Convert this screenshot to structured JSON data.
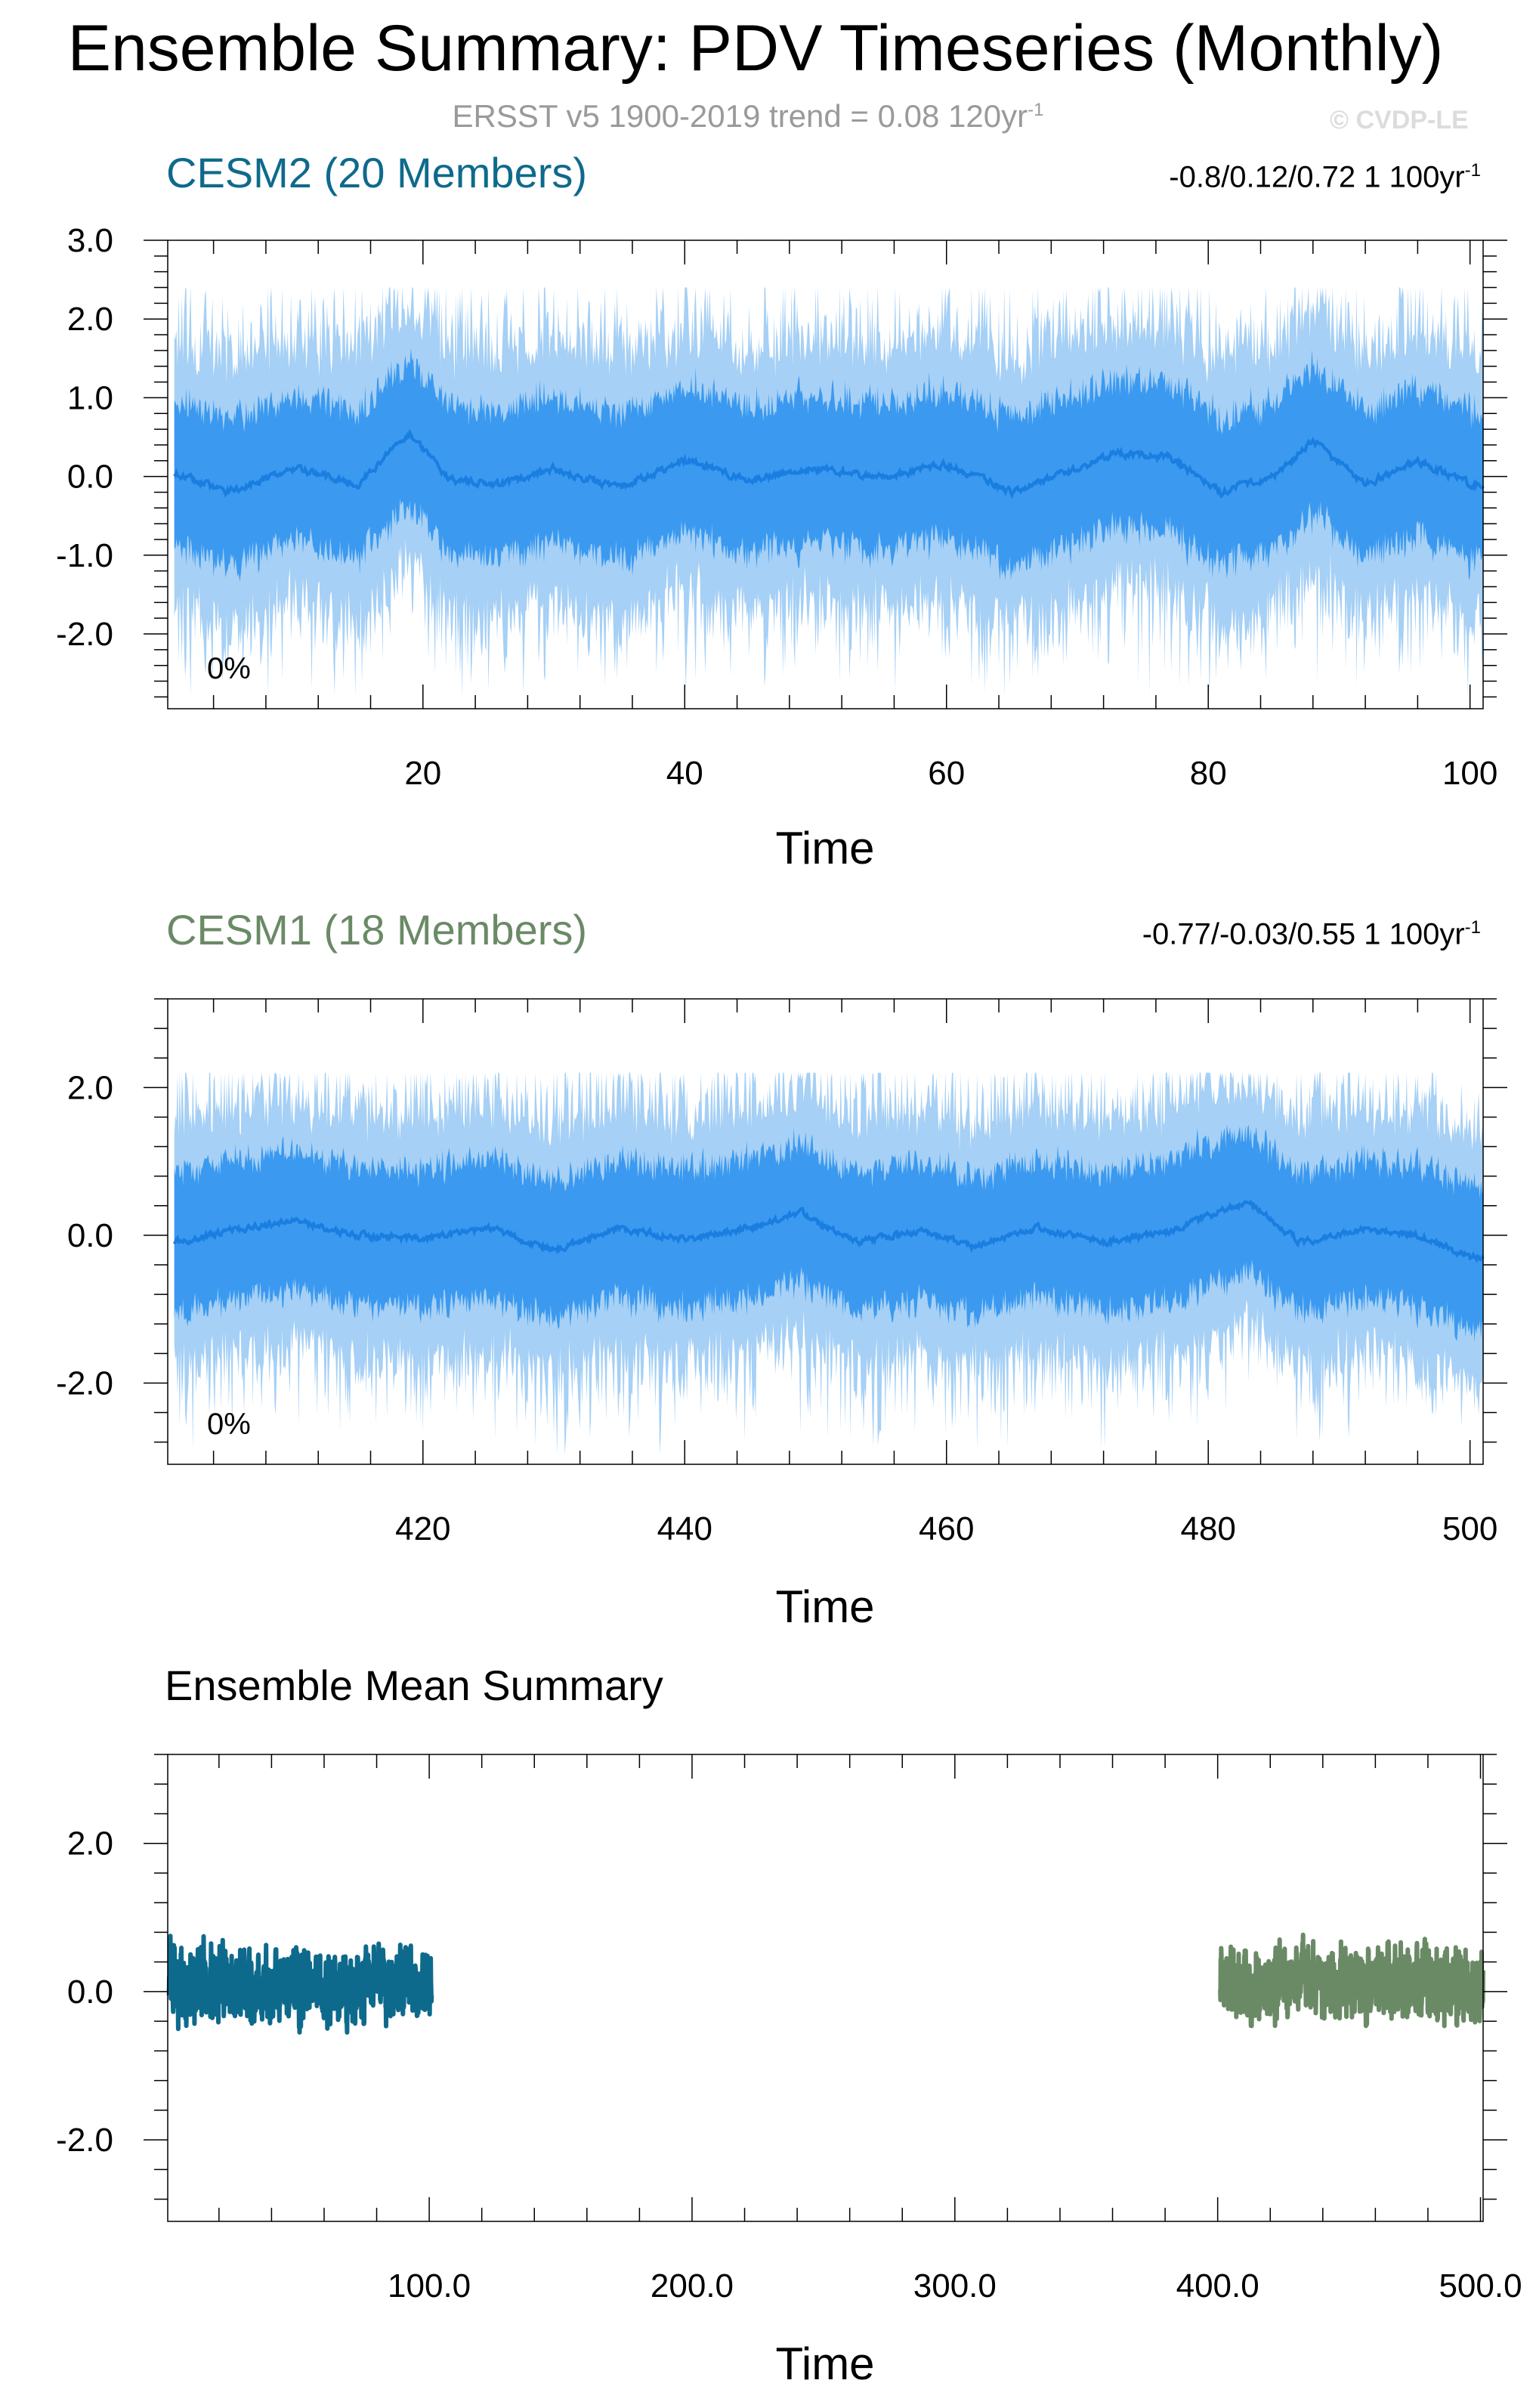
{
  "title": "Ensemble Summary: PDV Timeseries (Monthly)",
  "subtitle": "ERSST v5 1900-2019 trend = 0.08 120yr",
  "subtitle_sup": "-1",
  "credit": "© CVDP-LE",
  "colors": {
    "band_outer": "#a6d0f5",
    "band_inner": "#3b9af0",
    "mean_line": "#1a7ee0",
    "cesm2": "#0e6a8c",
    "cesm1": "#6a8a66",
    "grid": "#000000"
  },
  "chart_data": [
    {
      "type": "area",
      "title": "CESM2 (20 Members)",
      "stats": "-0.8/0.12/0.72 1 100yr",
      "stats_sup": "-1",
      "annotation": "0%",
      "xlabel": "Time",
      "ylabel": "",
      "xlim": [
        0.5,
        101
      ],
      "ylim": [
        -2.95,
        3.0
      ],
      "xticks": [
        20,
        40,
        60,
        80,
        100
      ],
      "xtick_labels": [
        "20",
        "40",
        "60",
        "80",
        "100"
      ],
      "yticks": [
        -2,
        -1,
        0,
        1,
        2,
        3
      ],
      "ytick_labels": [
        "-2.0",
        "-1.0",
        "0.0",
        "1.0",
        "2.0",
        "3.0"
      ],
      "series": [
        {
          "role": "outer_band",
          "x_range": [
            1,
            101
          ],
          "description_values": {
            "lower_min": -2.8,
            "upper_max": 2.4
          }
        },
        {
          "role": "inner_band",
          "x_range": [
            1,
            101
          ],
          "description_values": {
            "lower_min": -1.6,
            "upper_max": 1.7
          }
        },
        {
          "role": "ensemble_mean",
          "x_range": [
            1,
            101
          ],
          "sample_points": [
            [
              1,
              0.05
            ],
            [
              5,
              -0.2
            ],
            [
              10,
              0.1
            ],
            [
              15,
              -0.1
            ],
            [
              19,
              0.55
            ],
            [
              22,
              -0.05
            ],
            [
              26,
              -0.1
            ],
            [
              30,
              0.1
            ],
            [
              35,
              -0.15
            ],
            [
              40,
              0.2
            ],
            [
              45,
              -0.05
            ],
            [
              50,
              0.1
            ],
            [
              55,
              0.0
            ],
            [
              60,
              0.15
            ],
            [
              65,
              -0.2
            ],
            [
              70,
              0.1
            ],
            [
              73,
              0.3
            ],
            [
              77,
              0.25
            ],
            [
              81,
              -0.2
            ],
            [
              85,
              0.0
            ],
            [
              88,
              0.45
            ],
            [
              92,
              -0.1
            ],
            [
              96,
              0.2
            ],
            [
              100,
              -0.1
            ]
          ]
        }
      ]
    },
    {
      "type": "area",
      "title": "CESM1 (18 Members)",
      "stats": "-0.77/-0.03/0.55 1 100yr",
      "stats_sup": "-1",
      "annotation": "0%",
      "xlabel": "Time",
      "ylabel": "",
      "xlim": [
        400.5,
        501
      ],
      "ylim": [
        -3.1,
        3.2
      ],
      "xticks": [
        420,
        440,
        460,
        480,
        500
      ],
      "xtick_labels": [
        "420",
        "440",
        "460",
        "480",
        "500"
      ],
      "yticks": [
        -2,
        0,
        2
      ],
      "ytick_labels": [
        "-2.0",
        "0.0",
        "2.0"
      ],
      "series": [
        {
          "role": "outer_band",
          "x_range": [
            401,
            501
          ],
          "description_values": {
            "lower_min": -3.0,
            "upper_max": 2.2
          }
        },
        {
          "role": "inner_band",
          "x_range": [
            401,
            501
          ],
          "description_values": {
            "lower_min": -1.7,
            "upper_max": 1.6
          }
        },
        {
          "role": "ensemble_mean",
          "x_range": [
            401,
            501
          ],
          "sample_points": [
            [
              401,
              -0.1
            ],
            [
              405,
              0.05
            ],
            [
              410,
              0.2
            ],
            [
              415,
              0.0
            ],
            [
              420,
              -0.05
            ],
            [
              425,
              0.1
            ],
            [
              430,
              -0.2
            ],
            [
              435,
              0.1
            ],
            [
              440,
              -0.05
            ],
            [
              445,
              0.1
            ],
            [
              449,
              0.3
            ],
            [
              453,
              -0.1
            ],
            [
              458,
              0.05
            ],
            [
              462,
              -0.15
            ],
            [
              467,
              0.1
            ],
            [
              472,
              -0.1
            ],
            [
              477,
              0.05
            ],
            [
              483,
              0.45
            ],
            [
              487,
              -0.1
            ],
            [
              492,
              0.1
            ],
            [
              496,
              0.0
            ],
            [
              500,
              -0.3
            ]
          ]
        }
      ]
    },
    {
      "type": "line",
      "title": "Ensemble Mean Summary",
      "xlabel": "Time",
      "ylabel": "",
      "xlim": [
        0.5,
        501
      ],
      "ylim": [
        -3.1,
        3.2
      ],
      "xticks": [
        100,
        200,
        300,
        400,
        500
      ],
      "xtick_labels": [
        "100.0",
        "200.0",
        "300.0",
        "400.0",
        "500.0"
      ],
      "yticks": [
        -2,
        0,
        2
      ],
      "ytick_labels": [
        "-2.0",
        "0.0",
        "2.0"
      ],
      "series": [
        {
          "color_key": "cesm2",
          "x_range": [
            1,
            101
          ],
          "description_values": {
            "min": -0.55,
            "max": 0.75
          }
        },
        {
          "color_key": "cesm1",
          "x_range": [
            401,
            501
          ],
          "description_values": {
            "min": -0.55,
            "max": 0.9
          }
        }
      ]
    }
  ]
}
